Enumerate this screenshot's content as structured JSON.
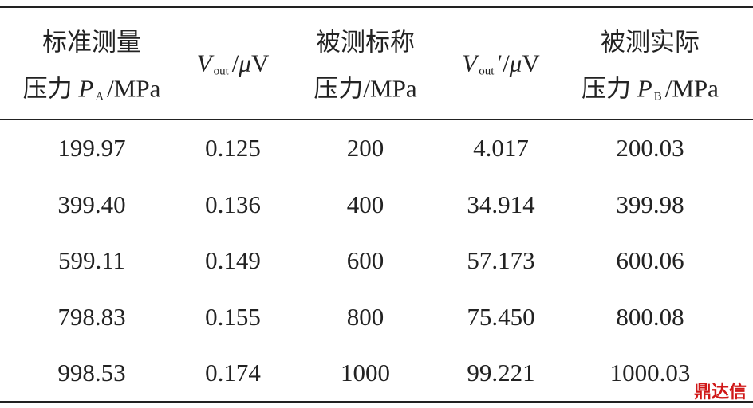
{
  "table": {
    "headers": [
      {
        "line1": "标准测量",
        "line2": "压力",
        "symbol": "P",
        "subscript": "A",
        "unit": "/MPa"
      },
      {
        "symbol": "V",
        "subscript": "out",
        "unit_prefix": "/",
        "unit_symbol": "μ",
        "unit": "V"
      },
      {
        "line1": "被测标称",
        "line2": "压力/MPa"
      },
      {
        "symbol": "V",
        "subscript": "out",
        "unit_prefix": "′/",
        "unit_symbol": "μ",
        "unit": "V"
      },
      {
        "line1": "被测实际",
        "line2": "压力",
        "symbol": "P",
        "subscript": "B",
        "unit": "/MPa"
      }
    ],
    "rows": [
      [
        "199.97",
        "0.125",
        "200",
        "4.017",
        "200.03"
      ],
      [
        "399.40",
        "0.136",
        "400",
        "34.914",
        "399.98"
      ],
      [
        "599.11",
        "0.149",
        "600",
        "57.173",
        "600.06"
      ],
      [
        "798.83",
        "0.155",
        "800",
        "75.450",
        "800.08"
      ],
      [
        "998.53",
        "0.174",
        "1000",
        "99.221",
        "1000.03"
      ]
    ]
  },
  "watermark": "鼎达信"
}
